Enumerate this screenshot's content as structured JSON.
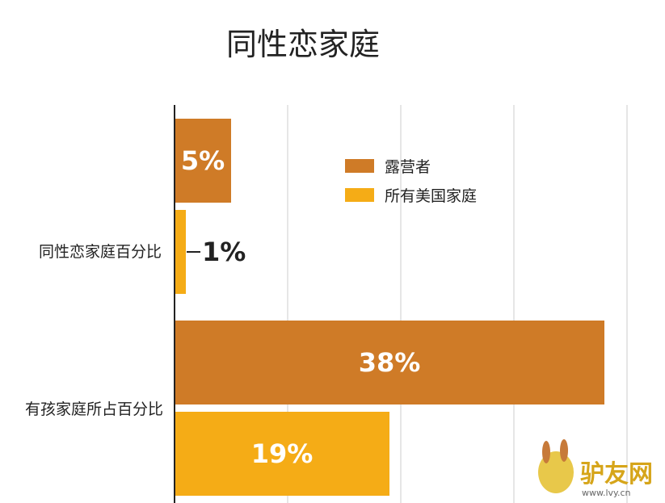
{
  "chart_data": {
    "type": "bar",
    "orientation": "horizontal",
    "title": "同性恋家庭",
    "categories": [
      "同性恋家庭百分比",
      "有孩家庭所占百分比"
    ],
    "series": [
      {
        "name": "露营者",
        "values": [
          5,
          38
        ],
        "labels": [
          "5%",
          "38%"
        ],
        "color": "#CF7B27"
      },
      {
        "name": "所有美国家庭",
        "values": [
          1,
          19
        ],
        "labels": [
          "1%",
          "19%"
        ],
        "color": "#F5AC16"
      }
    ],
    "xlim": [
      0,
      40
    ],
    "grid": true,
    "legend": "top-right",
    "unit": "%"
  },
  "watermark": {
    "text": "驴友网",
    "url_text": "www.lvy.cn"
  }
}
